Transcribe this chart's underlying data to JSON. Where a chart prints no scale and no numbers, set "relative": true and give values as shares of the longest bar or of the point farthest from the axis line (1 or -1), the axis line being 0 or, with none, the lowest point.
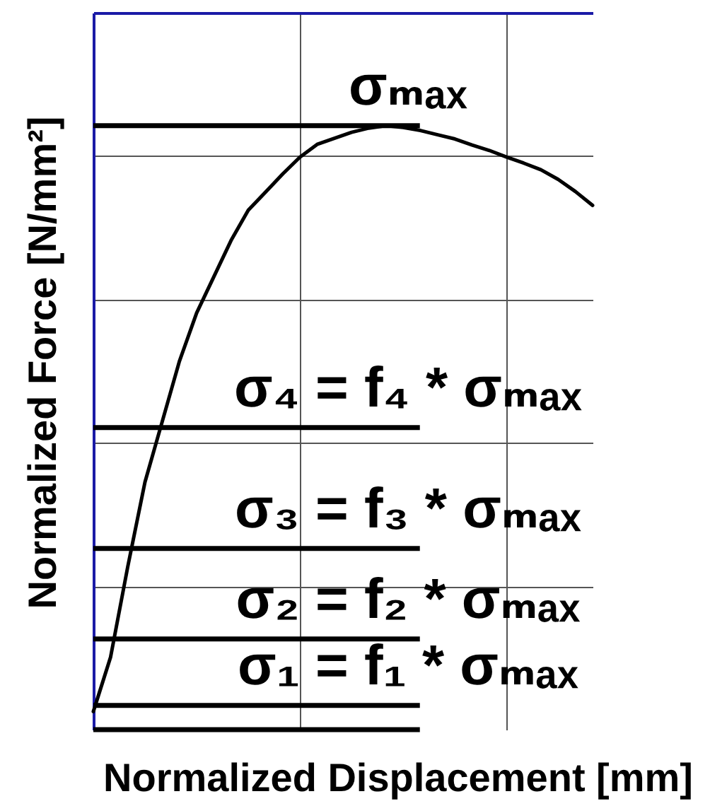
{
  "chart_data": {
    "type": "line",
    "xlabel": "Normalized Displacement [mm]",
    "ylabel": "Normalized Force [N/mm²]",
    "categories": [
      null,
      null,
      null,
      null,
      null,
      null,
      null,
      null,
      null,
      null,
      null,
      null,
      null,
      null,
      null,
      null,
      null,
      null,
      null,
      null,
      null,
      null,
      null,
      null,
      null,
      null,
      null,
      null,
      null,
      null
    ],
    "relative": true,
    "series": [
      {
        "color": "#000000",
        "values": [
          0.03,
          0.12,
          0.27,
          0.41,
          0.51,
          0.61,
          0.69,
          0.75,
          0.81,
          0.86,
          0.89,
          0.92,
          0.948,
          0.969,
          0.979,
          0.989,
          0.996,
          1.0,
          0.997,
          0.992,
          0.985,
          0.978,
          0.968,
          0.959,
          0.948,
          0.938,
          0.927,
          0.911,
          0.891,
          0.868
        ]
      }
    ],
    "ref_lines": [
      {
        "axis": "y",
        "value": 1.0,
        "label": "σₘₐₓ",
        "color": "#000000"
      },
      {
        "axis": "y",
        "value": 0.5,
        "label": "σ₄ = f₄ * σₘₐₓ",
        "color": "#000000"
      },
      {
        "axis": "y",
        "value": 0.3,
        "label": "σ₃ = f₃ * σₘₐₓ",
        "color": "#000000"
      },
      {
        "axis": "y",
        "value": 0.15,
        "label": "σ₂ = f₂ * σₘₐₓ",
        "color": "#000000"
      },
      {
        "axis": "y",
        "value": 0.04,
        "label": "σ₁ = f₁ * σₘₐₓ",
        "color": "#000000"
      },
      {
        "axis": "y",
        "value": 0,
        "color": "#000000"
      }
    ],
    "grid": true
  }
}
